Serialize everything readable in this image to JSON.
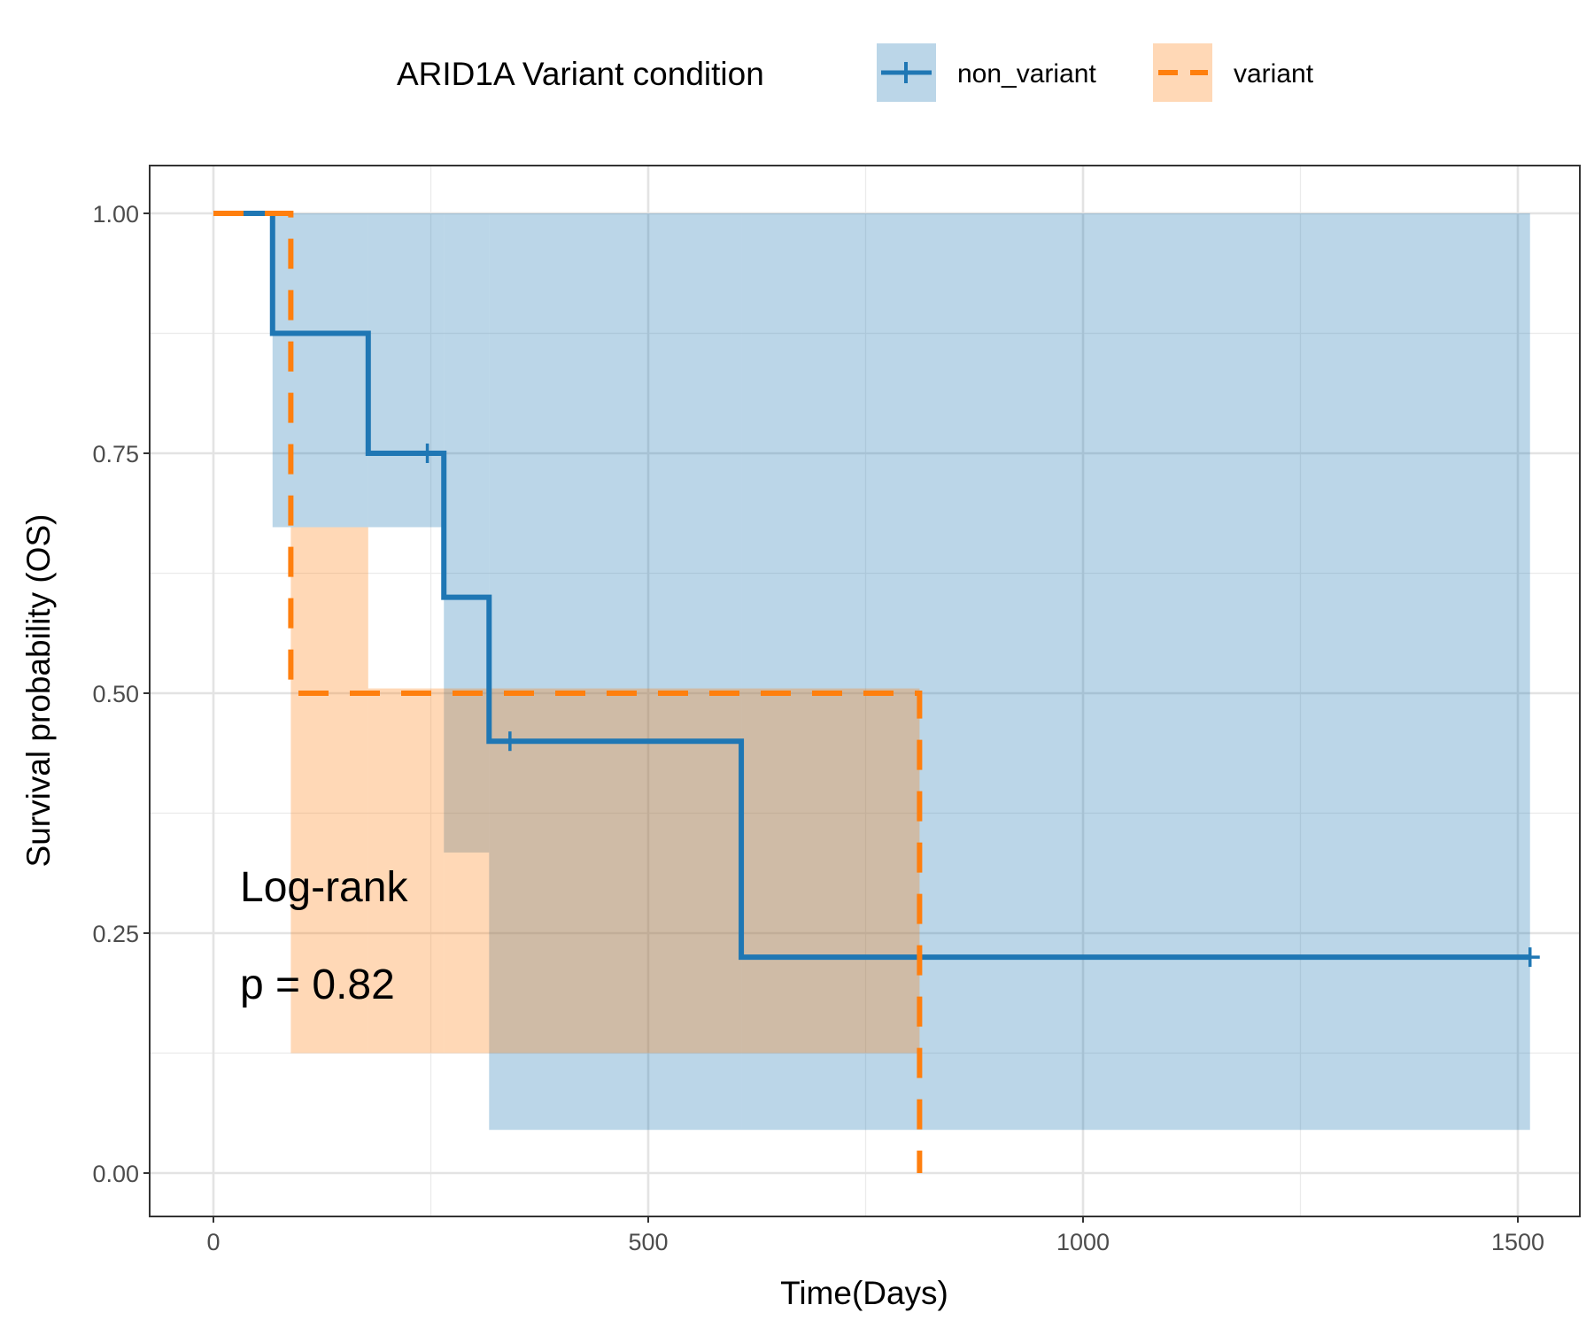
{
  "chart_data": {
    "type": "line",
    "subtype": "kaplan-meier step curve with confidence bands",
    "xlabel": "Time(Days)",
    "ylabel": "Survival probability (OS)",
    "xlim": [
      -72,
      1575
    ],
    "ylim": [
      -0.05,
      1.05
    ],
    "x_ticks": [
      0,
      500,
      1000,
      1500
    ],
    "y_ticks": [
      0.0,
      0.25,
      0.5,
      0.75,
      1.0
    ],
    "x_tick_labels": [
      "0",
      "500",
      "1000",
      "1500"
    ],
    "y_tick_labels": [
      "0.00",
      "0.25",
      "0.50",
      "0.75",
      "1.00"
    ],
    "grid": true,
    "legend": {
      "title": "ARID1A Variant condition",
      "position": "top",
      "entries": [
        "non_variant",
        "variant"
      ]
    },
    "annotations": [
      "Log-rank",
      "p = 0.82"
    ],
    "series": [
      {
        "name": "non_variant",
        "color": "#1f77b4",
        "linestyle": "solid",
        "steps": [
          [
            0,
            1.0
          ],
          [
            68,
            0.875
          ],
          [
            178,
            0.75
          ],
          [
            265,
            0.6
          ],
          [
            317,
            0.45
          ],
          [
            607,
            0.225
          ],
          [
            1514,
            0.225
          ]
        ],
        "censored": [
          [
            246,
            0.75
          ],
          [
            341,
            0.45
          ],
          [
            1514,
            0.225
          ]
        ],
        "ci_steps": [
          [
            0,
            1.0,
            1.0
          ],
          [
            68,
            0.673,
            1.0
          ],
          [
            178,
            0.673,
            1.0
          ],
          [
            265,
            0.334,
            1.0
          ],
          [
            317,
            0.045,
            1.0
          ],
          [
            607,
            0.045,
            1.0
          ],
          [
            1514,
            0.045,
            1.0
          ]
        ]
      },
      {
        "name": "variant",
        "color": "#ff7f0e",
        "linestyle": "dashed",
        "steps": [
          [
            0,
            1.0
          ],
          [
            89,
            0.5
          ],
          [
            812,
            0.0
          ]
        ],
        "censored": [],
        "ci_steps": [
          [
            89,
            0.125,
            0.673
          ],
          [
            178,
            0.125,
            0.505
          ],
          [
            265,
            0.125,
            0.505
          ],
          [
            317,
            0.125,
            0.505
          ],
          [
            607,
            0.125,
            0.505
          ],
          [
            812,
            0.125,
            0.505
          ]
        ]
      }
    ]
  }
}
